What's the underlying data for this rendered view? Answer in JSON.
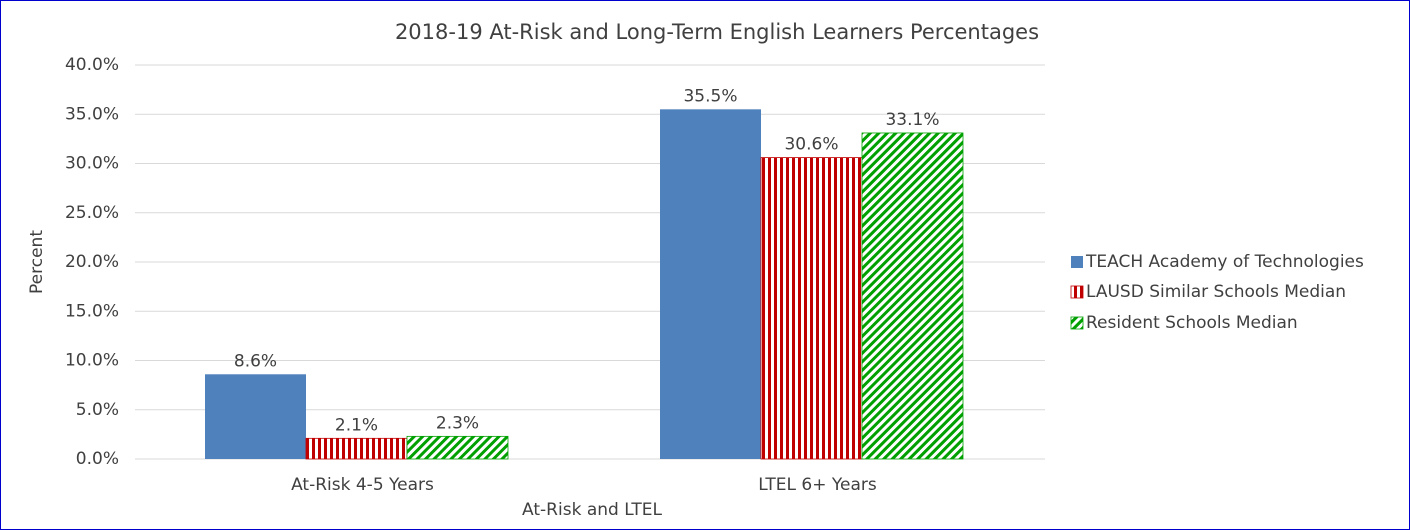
{
  "chart_data": {
    "type": "bar",
    "title": "2018-19 At-Risk and Long-Term English Learners Percentages",
    "x_label": "At-Risk and LTEL",
    "y_label": "Percent",
    "categories": [
      "At-Risk 4-5 Years",
      "LTEL 6+ Years"
    ],
    "series": [
      {
        "name": "TEACH Academy of Technologies",
        "color": "#4f81bd",
        "values": [
          8.6,
          35.5
        ],
        "value_labels": [
          "8.6%",
          "35.5%"
        ]
      },
      {
        "name": "LAUSD Similar Schools Median",
        "color": "#c00000",
        "values": [
          2.1,
          30.6
        ],
        "value_labels": [
          "2.1%",
          "30.6%"
        ]
      },
      {
        "name": "Resident Schools Median",
        "color": "#00a000",
        "values": [
          2.3,
          33.1
        ],
        "value_labels": [
          "2.3%",
          "33.1%"
        ]
      }
    ],
    "ylim": [
      0,
      40
    ],
    "yticks": [
      {
        "value": 0,
        "label": "0.0%"
      },
      {
        "value": 5,
        "label": "5.0%"
      },
      {
        "value": 10,
        "label": "10.0%"
      },
      {
        "value": 15,
        "label": "15.0%"
      },
      {
        "value": 20,
        "label": "20.0%"
      },
      {
        "value": 25,
        "label": "25.0%"
      },
      {
        "value": 30,
        "label": "30.0%"
      },
      {
        "value": 35,
        "label": "35.0%"
      },
      {
        "value": 40,
        "label": "40.0%"
      }
    ],
    "grid": true,
    "legend": "right"
  }
}
